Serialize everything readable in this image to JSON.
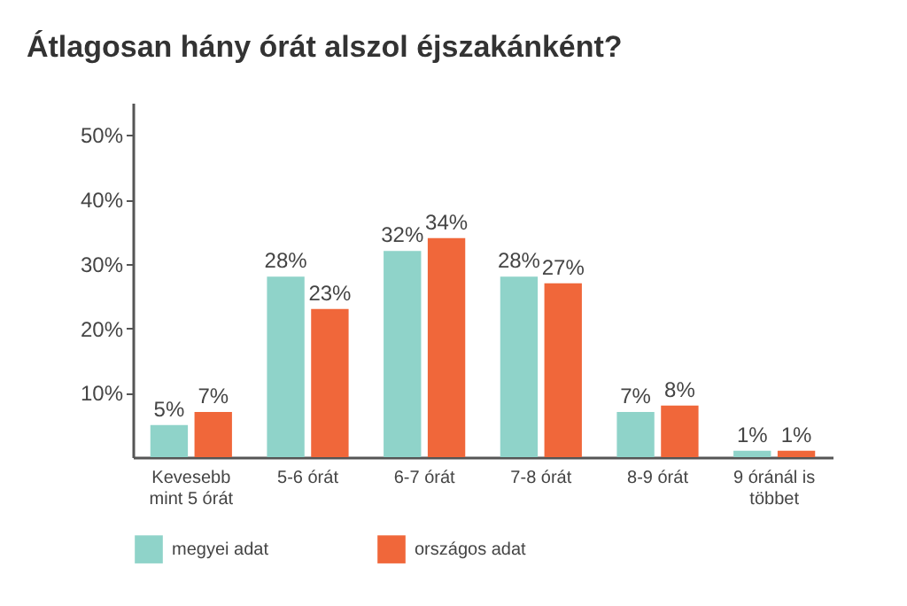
{
  "chart_data": {
    "type": "bar",
    "title": "Átlagosan hány órát alszol éjszakánként?",
    "categories": [
      "Kevesebb mint 5 órát",
      "5-6 órát",
      "6-7 órát",
      "7-8 órát",
      "8-9 órát",
      "9 óránál is többet"
    ],
    "series": [
      {
        "name": "megyei adat",
        "color": "#8fd3c9",
        "values": [
          5,
          28,
          32,
          28,
          7,
          1
        ],
        "value_labels": [
          "5%",
          "28%",
          "32%",
          "28%",
          "7%",
          "1%"
        ]
      },
      {
        "name": "országos adat",
        "color": "#f0673a",
        "values": [
          7,
          23,
          34,
          27,
          8,
          1
        ],
        "value_labels": [
          "7%",
          "23%",
          "34%",
          "27%",
          "8%",
          "1%"
        ]
      }
    ],
    "ylim": [
      0,
      55
    ],
    "yticks": [
      {
        "value": 10,
        "label": "10%"
      },
      {
        "value": 20,
        "label": "20%"
      },
      {
        "value": 30,
        "label": "30%"
      },
      {
        "value": 40,
        "label": "40%"
      },
      {
        "value": 50,
        "label": "50%"
      }
    ],
    "grid": false,
    "legend": "bottom left"
  }
}
